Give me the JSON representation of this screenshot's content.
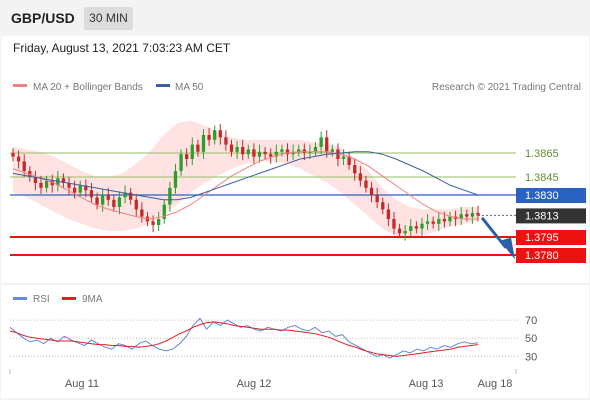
{
  "header": {
    "pair": "GBP/USD",
    "timeframe": "30 MIN",
    "datetime": "Friday, August 13, 2021 7:03:23 AM CET"
  },
  "legend": {
    "ma20": "MA 20 + Bollinger Bands",
    "ma50": "MA 50",
    "credit": "Research © 2021 Trading Central",
    "rsi": "RSI",
    "ma9": "9MA"
  },
  "colors": {
    "ma20": "#f08080",
    "ma50": "#3b5fa0",
    "bollinger": "#ffdede",
    "resistance": "#90c060",
    "pivot": "#2a62c4",
    "support": "#ee1111",
    "current": "#333333",
    "bull": "#2e9e2e",
    "bear": "#c42a2a",
    "rsi": "#6688dd",
    "rsi_ma": "#dd2222",
    "arrow": "#2c5fa8"
  },
  "chart_data": {
    "type": "candlestick",
    "x_labels": [
      "Aug 11",
      "Aug 12",
      "Aug 13",
      "Aug 18"
    ],
    "y_range": [
      1.3755,
      1.3905
    ],
    "levels": [
      {
        "label": "1.3865",
        "value": 1.3865,
        "kind": "resistance"
      },
      {
        "label": "1.3845",
        "value": 1.3845,
        "kind": "resistance"
      },
      {
        "label": "1.3830",
        "value": 1.383,
        "kind": "pivot"
      },
      {
        "label": "1.3813",
        "value": 1.3813,
        "kind": "current"
      },
      {
        "label": "1.3795",
        "value": 1.3795,
        "kind": "support"
      },
      {
        "label": "1.3780",
        "value": 1.378,
        "kind": "support"
      }
    ],
    "close_series": [
      1.3862,
      1.3858,
      1.385,
      1.3845,
      1.384,
      1.3836,
      1.3842,
      1.3838,
      1.3844,
      1.384,
      1.3836,
      1.3832,
      1.3838,
      1.3834,
      1.3828,
      1.3822,
      1.383,
      1.3826,
      1.382,
      1.3828,
      1.3832,
      1.3826,
      1.3818,
      1.3812,
      1.3808,
      1.3805,
      1.381,
      1.3822,
      1.3836,
      1.385,
      1.3864,
      1.386,
      1.3872,
      1.3866,
      1.388,
      1.3876,
      1.3884,
      1.3878,
      1.3872,
      1.3866,
      1.387,
      1.3864,
      1.3868,
      1.3862,
      1.3866,
      1.3864,
      1.3862,
      1.3866,
      1.3868,
      1.3864,
      1.3866,
      1.3868,
      1.3865,
      1.3866,
      1.387,
      1.3878,
      1.3866,
      1.3868,
      1.386,
      1.3862,
      1.3855,
      1.3848,
      1.3842,
      1.3836,
      1.383,
      1.3824,
      1.3818,
      1.381,
      1.3802,
      1.3798,
      1.38,
      1.3804,
      1.3802,
      1.3806,
      1.3808,
      1.3806,
      1.381,
      1.3808,
      1.3812,
      1.381,
      1.3814,
      1.3812,
      1.3815,
      1.3813
    ],
    "ma20": [
      1.3852,
      1.3848,
      1.3844,
      1.384,
      1.3834,
      1.3828,
      1.3822,
      1.3818,
      1.3815,
      1.3812,
      1.381,
      1.3812,
      1.3816,
      1.3822,
      1.383,
      1.3838,
      1.3846,
      1.3852,
      1.3858,
      1.3862,
      1.3865,
      1.3866,
      1.3866,
      1.3866,
      1.3864,
      1.386,
      1.3854,
      1.3846,
      1.3838,
      1.383,
      1.3822,
      1.3816,
      1.3812,
      1.381,
      1.381
    ],
    "ma50": [
      1.3848,
      1.3846,
      1.3844,
      1.3842,
      1.384,
      1.3838,
      1.3836,
      1.3834,
      1.3832,
      1.383,
      1.3828,
      1.3826,
      1.3826,
      1.3828,
      1.3832,
      1.3836,
      1.384,
      1.3844,
      1.3848,
      1.3852,
      1.3856,
      1.386,
      1.3862,
      1.3864,
      1.3865,
      1.3866,
      1.3866,
      1.3864,
      1.386,
      1.3855,
      1.385,
      1.3844,
      1.3838,
      1.3834,
      1.383
    ],
    "bb_upper": [
      1.387,
      1.3868,
      1.3866,
      1.3862,
      1.3856,
      1.385,
      1.3846,
      1.3845,
      1.3848,
      1.3856,
      1.3866,
      1.388,
      1.389,
      1.3892,
      1.3888,
      1.3882,
      1.3878,
      1.3876,
      1.3876,
      1.3876,
      1.3876,
      1.3876,
      1.3874,
      1.3872,
      1.387,
      1.386,
      1.385,
      1.3836,
      1.3826,
      1.382,
      1.3818,
      1.3818,
      1.3818,
      1.382,
      1.382
    ],
    "bb_lower": [
      1.3832,
      1.3828,
      1.3822,
      1.3816,
      1.381,
      1.3806,
      1.3802,
      1.38,
      1.38,
      1.3802,
      1.3806,
      1.3814,
      1.3822,
      1.3832,
      1.384,
      1.3846,
      1.3852,
      1.3856,
      1.3858,
      1.3858,
      1.3856,
      1.3852,
      1.3846,
      1.384,
      1.3832,
      1.3822,
      1.3812,
      1.3802,
      1.3796,
      1.3794,
      1.3796,
      1.38,
      1.3804,
      1.3806,
      1.3808
    ],
    "rsi": {
      "y_range": [
        15,
        80
      ],
      "levels": [
        70,
        50,
        30
      ],
      "values": [
        62,
        56,
        50,
        46,
        48,
        44,
        50,
        46,
        52,
        48,
        45,
        42,
        48,
        44,
        40,
        38,
        44,
        42,
        38,
        44,
        47,
        42,
        38,
        36,
        38,
        44,
        52,
        64,
        72,
        60,
        68,
        64,
        70,
        66,
        62,
        64,
        60,
        58,
        62,
        60,
        58,
        62,
        64,
        60,
        58,
        62,
        56,
        58,
        52,
        54,
        46,
        42,
        38,
        34,
        30,
        32,
        28,
        32,
        36,
        34,
        38,
        36,
        40,
        38,
        42,
        40,
        44,
        46,
        44,
        45
      ],
      "ma9": [
        58,
        56,
        53,
        51,
        50,
        49,
        48,
        47,
        47,
        47,
        46,
        45,
        44,
        43,
        43,
        42,
        42,
        41,
        41,
        40,
        41,
        42,
        44,
        47,
        51,
        55,
        58,
        62,
        65,
        67,
        68,
        67,
        66,
        64,
        63,
        62,
        61,
        60,
        60,
        60,
        59,
        59,
        58,
        57,
        56,
        55,
        53,
        51,
        48,
        45,
        42,
        40,
        37,
        35,
        33,
        32,
        31,
        30,
        31,
        32,
        33,
        34,
        35,
        36,
        37,
        38,
        40,
        41,
        42,
        43
      ]
    }
  }
}
